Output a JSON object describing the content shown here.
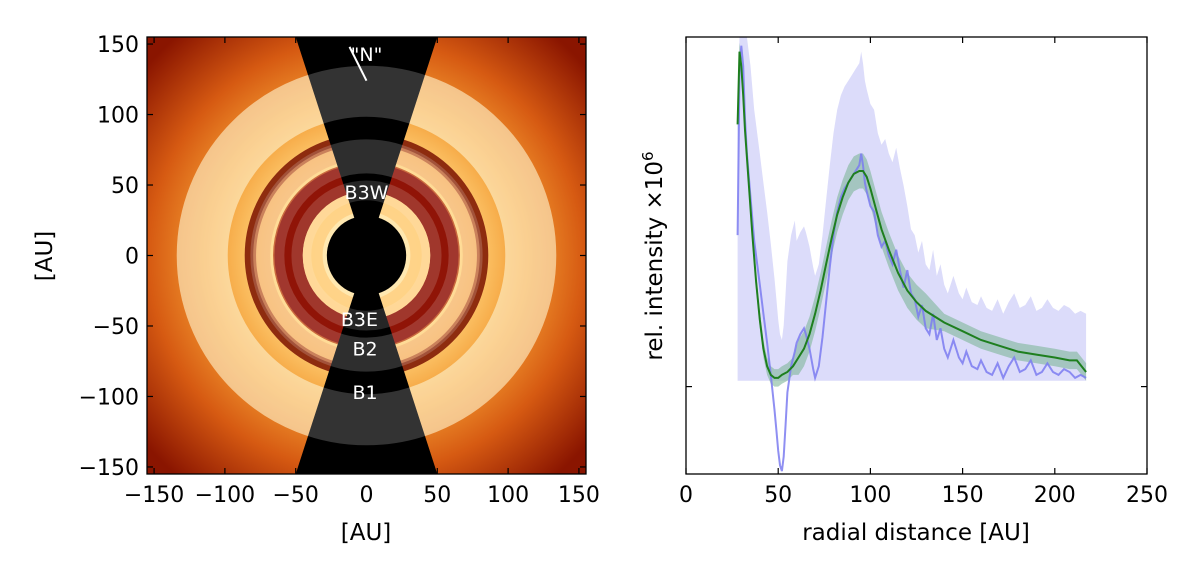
{
  "chart_data": [
    {
      "type": "image",
      "xlabel": "[AU]",
      "ylabel": "[AU]",
      "xlim": [
        -155,
        155
      ],
      "ylim": [
        -155,
        155
      ],
      "xticks": [
        -150,
        -100,
        -50,
        0,
        50,
        100,
        150
      ],
      "yticks": [
        -150,
        -100,
        -50,
        0,
        50,
        100,
        150
      ],
      "xtick_labels": [
        "−150",
        "−100",
        "−50",
        "0",
        "50",
        "100",
        "150"
      ],
      "ytick_labels": [
        "−150",
        "−100",
        "−50",
        "0",
        "50",
        "100",
        "150"
      ],
      "colormap": "gist_heat",
      "rings": [
        {
          "name": "B1",
          "radius": 116,
          "width": 36
        },
        {
          "name": "B2",
          "radius": 82,
          "width": 8
        },
        {
          "name": "B3",
          "radius": 55,
          "width": 20
        }
      ],
      "annotations": [
        {
          "text": "\"N\"",
          "x": 0,
          "y": 143
        },
        {
          "text": "B3W",
          "x": 0,
          "y": 45
        },
        {
          "text": "B3E",
          "x": -5,
          "y": -45
        },
        {
          "text": "B2",
          "x": -1,
          "y": -66
        },
        {
          "text": "B1",
          "x": -1,
          "y": -97
        }
      ]
    },
    {
      "type": "line",
      "xlabel": "radial distance [AU]",
      "ylabel": "rel. intensity ×10",
      "ylabel_exponent": "6",
      "xlim": [
        0,
        250
      ],
      "ylim": [
        -0.3,
        1.2
      ],
      "xticks": [
        0,
        50,
        100,
        150,
        200,
        250
      ],
      "yticks": [
        0
      ],
      "colors": {
        "data": "#7b7bf0",
        "model": "#1e7f1e",
        "model_band": "#7fb69a",
        "data_band": "#dcdcfa"
      },
      "series": [
        {
          "name": "",
          "style": "data",
          "x": [
            28,
            29,
            30,
            31,
            32,
            33,
            35,
            37,
            40,
            42,
            44,
            46,
            48,
            49,
            50,
            51,
            52,
            53,
            54,
            55,
            57,
            59,
            60,
            62,
            64,
            65,
            67,
            69,
            70,
            72,
            74,
            76,
            78,
            80,
            82,
            84,
            86,
            88,
            90,
            92,
            94,
            95,
            96,
            97,
            98,
            100,
            102,
            104,
            106,
            108,
            110,
            112,
            114,
            116,
            118,
            120,
            122,
            124,
            126,
            128,
            130,
            132,
            134,
            136,
            138,
            140,
            142,
            145,
            148,
            150,
            152,
            155,
            158,
            160,
            163,
            166,
            169,
            172,
            175,
            178,
            181,
            184,
            187,
            190,
            193,
            196,
            199,
            202,
            205,
            208,
            211,
            214,
            217
          ],
          "y": [
            0.52,
            1.08,
            1.17,
            1.1,
            0.92,
            0.8,
            0.65,
            0.5,
            0.35,
            0.25,
            0.15,
            0.04,
            -0.08,
            -0.15,
            -0.22,
            -0.27,
            -0.29,
            -0.24,
            -0.13,
            -0.02,
            0.07,
            0.12,
            0.15,
            0.18,
            0.2,
            0.18,
            0.13,
            0.06,
            0.03,
            0.07,
            0.17,
            0.29,
            0.41,
            0.52,
            0.6,
            0.65,
            0.68,
            0.7,
            0.72,
            0.74,
            0.76,
            0.8,
            0.76,
            0.7,
            0.67,
            0.62,
            0.6,
            0.52,
            0.48,
            0.5,
            0.45,
            0.42,
            0.47,
            0.4,
            0.34,
            0.4,
            0.32,
            0.3,
            0.24,
            0.28,
            0.2,
            0.18,
            0.25,
            0.16,
            0.2,
            0.13,
            0.1,
            0.16,
            0.1,
            0.08,
            0.12,
            0.07,
            0.06,
            0.09,
            0.05,
            0.04,
            0.08,
            0.03,
            0.07,
            0.1,
            0.05,
            0.06,
            0.09,
            0.04,
            0.05,
            0.08,
            0.05,
            0.04,
            0.06,
            0.05,
            0.03,
            0.04,
            0.03
          ]
        },
        {
          "name": "",
          "style": "model",
          "x": [
            28,
            29,
            30,
            31,
            32,
            34,
            36,
            38,
            40,
            42,
            44,
            46,
            48,
            50,
            52,
            55,
            58,
            61,
            64,
            67,
            70,
            73,
            76,
            79,
            82,
            85,
            88,
            91,
            94,
            96,
            98,
            100,
            103,
            106,
            110,
            115,
            120,
            125,
            130,
            140,
            150,
            160,
            170,
            180,
            190,
            200,
            208,
            212,
            217
          ],
          "y": [
            0.9,
            1.15,
            1.1,
            1.0,
            0.88,
            0.7,
            0.52,
            0.36,
            0.23,
            0.13,
            0.07,
            0.04,
            0.03,
            0.03,
            0.04,
            0.05,
            0.07,
            0.1,
            0.13,
            0.18,
            0.25,
            0.33,
            0.42,
            0.51,
            0.59,
            0.65,
            0.7,
            0.73,
            0.74,
            0.74,
            0.72,
            0.68,
            0.61,
            0.54,
            0.47,
            0.39,
            0.33,
            0.29,
            0.26,
            0.22,
            0.19,
            0.16,
            0.14,
            0.12,
            0.11,
            0.1,
            0.09,
            0.09,
            0.05
          ]
        }
      ]
    }
  ]
}
